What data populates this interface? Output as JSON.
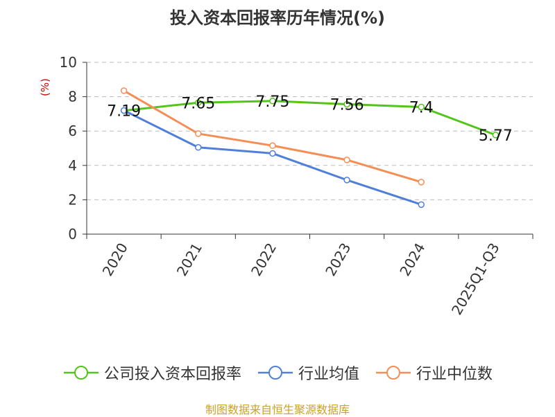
{
  "chart_data": {
    "type": "line",
    "title": "投入资本回报率历年情况(%)",
    "ylabel": "(%)",
    "xlabel": "",
    "categories": [
      "2020",
      "2021",
      "2022",
      "2023",
      "2024",
      "2025Q1-Q3"
    ],
    "ylim": [
      0,
      10
    ],
    "yticks": [
      0,
      2,
      4,
      6,
      8,
      10
    ],
    "grid": true,
    "legend_position": "bottom",
    "series": [
      {
        "name": "公司投入资本回报率",
        "color": "#52c41a",
        "values": [
          7.19,
          7.65,
          7.75,
          7.56,
          7.4,
          5.77
        ],
        "data_labels": [
          "7.19",
          "7.65",
          "7.75",
          "7.56",
          "7.4",
          "5.77"
        ]
      },
      {
        "name": "行业均值",
        "color": "#4f7fdb",
        "values": [
          7.2,
          5.05,
          4.7,
          3.15,
          1.72,
          null
        ]
      },
      {
        "name": "行业中位数",
        "color": "#f58e55",
        "values": [
          8.35,
          5.85,
          5.15,
          4.32,
          3.03,
          null
        ]
      }
    ]
  },
  "source_text": "制图数据来自恒生聚源数据库"
}
